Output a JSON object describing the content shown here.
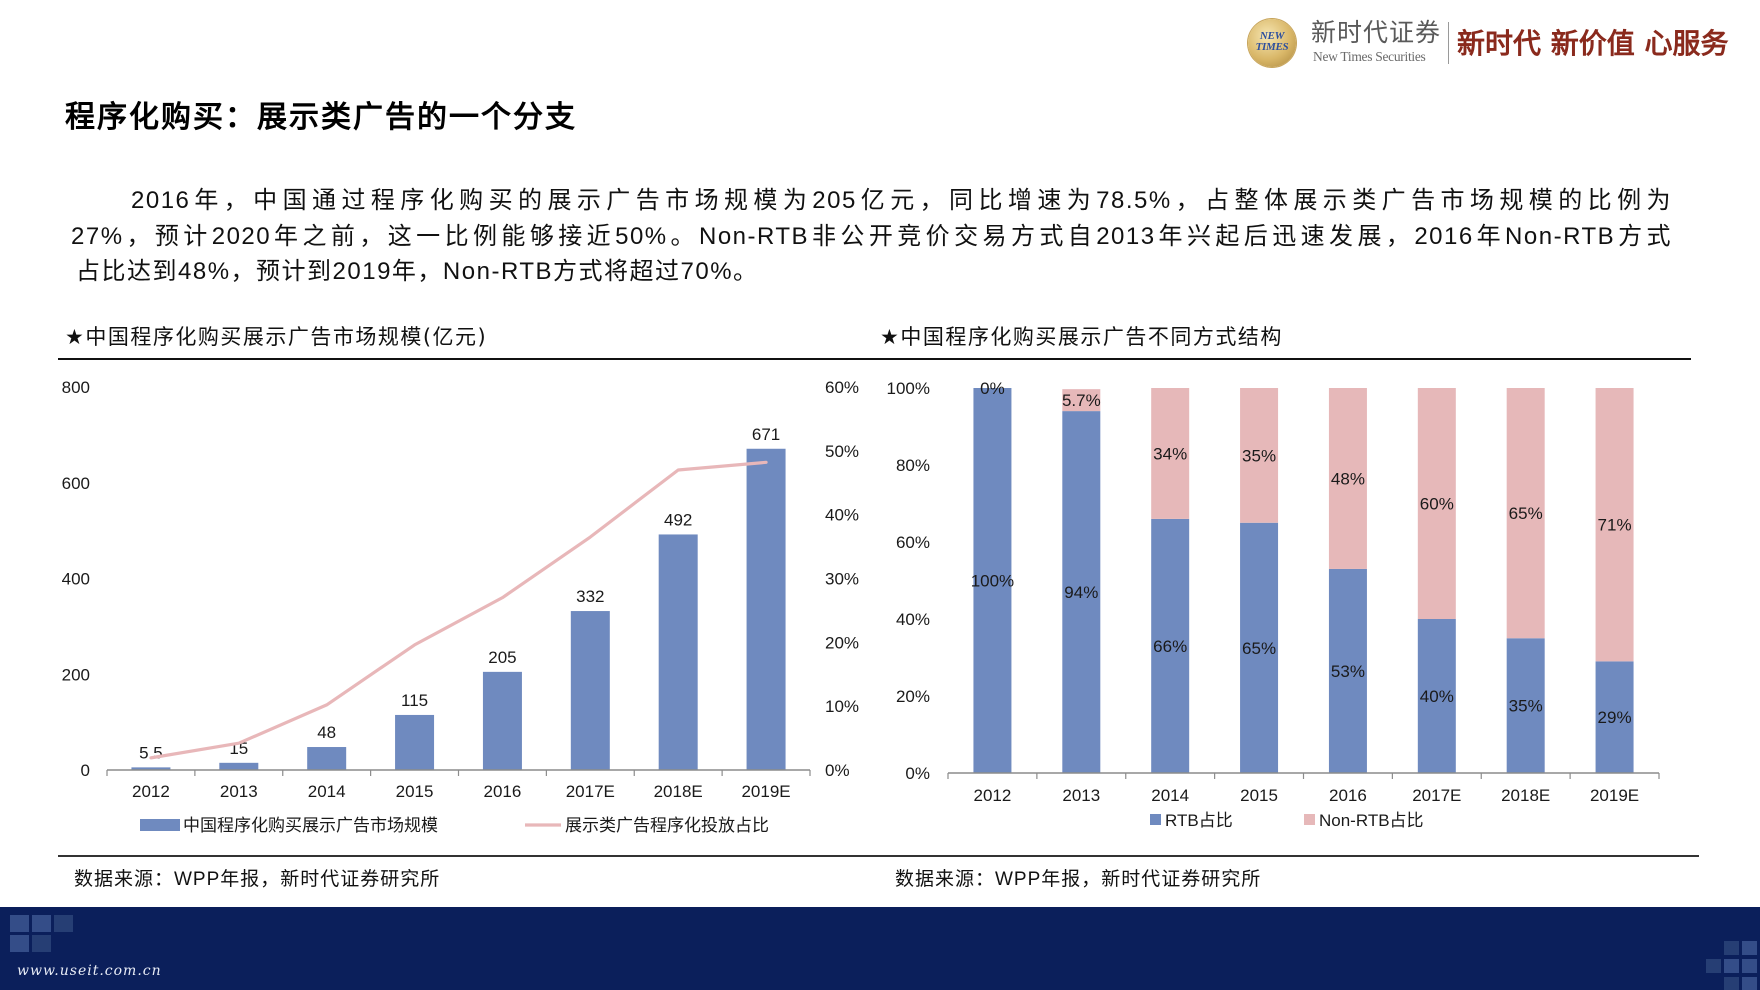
{
  "header": {
    "logo_mark": [
      "NEW",
      "TIMES"
    ],
    "brand_cn": "新时代证券",
    "brand_en": "New Times Securities",
    "slogan": "新时代 新价值 心服务"
  },
  "title": "程序化购买：展示类广告的一个分支",
  "paragraph_lines": [
    "2016年，中国通过程序化购买的展示广告市场规模为205亿元，同比增速为78.5%，占整体展示类广告市场规模的比例为",
    "27%，预计2020年之前，这一比例能够接近50%。Non-RTB非公开竞价交易方式自2013年兴起后迅速发展，2016年Non-RTB方式",
    "占比达到48%，预计到2019年，Non-RTB方式将超过70%。"
  ],
  "footer": {
    "watermark": "www.useit.com.cn"
  },
  "colors": {
    "brand_slogan": "#8a2a1d",
    "footer_band": "#0b1f5b",
    "bar_blue": "#6f8abf",
    "line_pink": "#e8b7b9",
    "bar_pink": "#e6b8b9"
  },
  "chart_data": [
    {
      "type": "bar",
      "title": "★中国程序化购买展示广告市场规模(亿元)",
      "source": "数据来源：WPP年报，新时代证券研究所",
      "categories": [
        "2012",
        "2013",
        "2014",
        "2015",
        "2016",
        "2017E",
        "2018E",
        "2019E"
      ],
      "series": [
        {
          "name": "中国程序化购买展示广告市场规模",
          "type": "bar",
          "axis": "left",
          "color": "#6f8abf",
          "values": [
            5.5,
            15,
            48,
            115,
            205,
            332,
            492,
            671
          ],
          "labels": [
            "5.5",
            "15",
            "48",
            "115",
            "205",
            "332",
            "492",
            "671"
          ]
        },
        {
          "name": "展示类广告程序化投放占比",
          "type": "line",
          "axis": "right",
          "color": "#e8b7b9",
          "values": [
            1.9,
            4.2,
            10.2,
            19.6,
            27.0,
            36.5,
            47.0,
            48.2
          ]
        }
      ],
      "xlabel": "",
      "ylabel": "",
      "ylim": [
        0,
        800
      ],
      "yticks": [
        "0",
        "200",
        "400",
        "600",
        "800"
      ],
      "y2lim": [
        0,
        60
      ],
      "y2ticks": [
        "0%",
        "10%",
        "20%",
        "30%",
        "40%",
        "50%",
        "60%"
      ],
      "grid": false,
      "legend": "bottom"
    },
    {
      "type": "bar",
      "stacked": true,
      "title": "★中国程序化购买展示广告不同方式结构",
      "source": "数据来源：WPP年报，新时代证券研究所",
      "categories": [
        "2012",
        "2013",
        "2014",
        "2015",
        "2016",
        "2017E",
        "2018E",
        "2019E"
      ],
      "series": [
        {
          "name": "RTB占比",
          "color": "#6f8abf",
          "values": [
            100,
            94,
            66,
            65,
            53,
            40,
            35,
            29
          ],
          "labels": [
            "100%",
            "94%",
            "66%",
            "65%",
            "53%",
            "40%",
            "35%",
            "29%"
          ]
        },
        {
          "name": "Non-RTB占比",
          "color": "#e6b8b9",
          "values": [
            0,
            5.7,
            34,
            35,
            48,
            60,
            65,
            71
          ],
          "labels": [
            "0%",
            "5.7%",
            "34%",
            "35%",
            "48%",
            "60%",
            "65%",
            "71%"
          ]
        }
      ],
      "xlabel": "",
      "ylabel": "",
      "ylim": [
        0,
        100
      ],
      "yticks": [
        "0%",
        "20%",
        "40%",
        "60%",
        "80%",
        "100%"
      ],
      "grid": false,
      "legend": "bottom"
    }
  ]
}
